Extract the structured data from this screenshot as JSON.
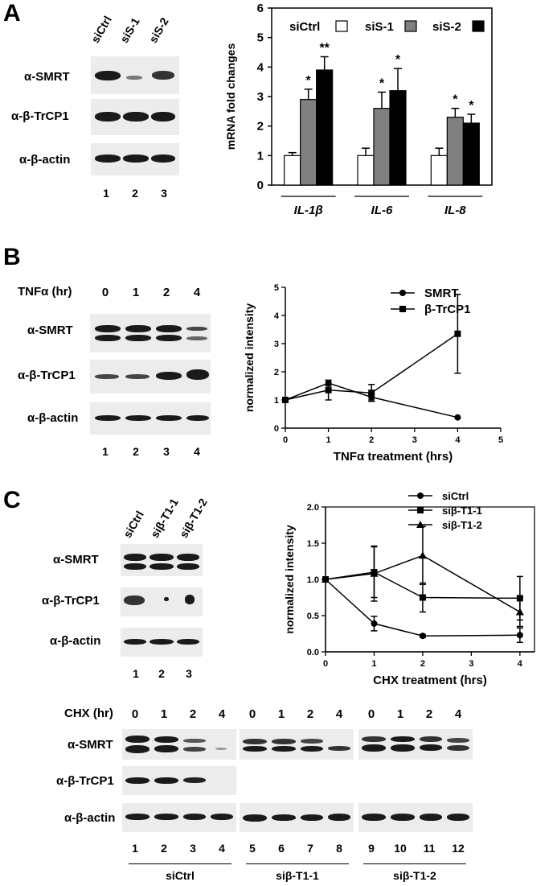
{
  "panels": {
    "A": {
      "letter": "A",
      "lanes_header": [
        "siCtrl",
        "siS-1",
        "siS-2"
      ],
      "blots": [
        "α-SMRT",
        "α-β-TrCP1",
        "α-β-actin"
      ],
      "lane_numbers": [
        "1",
        "2",
        "3"
      ]
    },
    "B": {
      "letter": "B",
      "tnf_header": "TNFα (hr)",
      "times": [
        "0",
        "1",
        "2",
        "4"
      ],
      "blots": [
        "α-SMRT",
        "α-β-TrCP1",
        "α-β-actin"
      ],
      "lane_numbers": [
        "1",
        "2",
        "3",
        "4"
      ]
    },
    "C": {
      "letter": "C",
      "lanes_header": [
        "siCtrl",
        "siβ-T1-1",
        "siβ-T1-2"
      ],
      "blots": [
        "α-SMRT",
        "α-β-TrCP1",
        "α-β-actin"
      ],
      "lane_numbers": [
        "1",
        "2",
        "3"
      ],
      "chx_header": "CHX (hr)",
      "chx_times": [
        "0",
        "1",
        "2",
        "4",
        "0",
        "1",
        "2",
        "4",
        "0",
        "1",
        "2",
        "4"
      ],
      "wide_blots": [
        "α-SMRT",
        "α-β-TrCP1",
        "α-β-actin"
      ],
      "wide_lane_numbers": [
        "1",
        "2",
        "3",
        "4",
        "5",
        "6",
        "7",
        "8",
        "9",
        "10",
        "11",
        "12"
      ],
      "groups": [
        "siCtrl",
        "siβ-T1-1",
        "siβ-T1-2"
      ]
    }
  },
  "chart_data": [
    {
      "id": "A",
      "type": "bar",
      "ylabel": "mRNA fold changes",
      "ylim": [
        0,
        6
      ],
      "yticks": [
        "0",
        "1",
        "2",
        "3",
        "4",
        "5",
        "6"
      ],
      "categories": [
        "IL-1β",
        "IL-6",
        "IL-8"
      ],
      "series": [
        {
          "name": "siCtrl",
          "color": "#ffffff",
          "values": [
            1.0,
            1.0,
            1.0
          ],
          "errors": [
            0.1,
            0.25,
            0.25
          ]
        },
        {
          "name": "siS-1",
          "color": "#808080",
          "values": [
            2.9,
            2.6,
            2.3
          ],
          "errors": [
            0.35,
            0.55,
            0.3
          ]
        },
        {
          "name": "siS-2",
          "color": "#000000",
          "values": [
            3.9,
            3.2,
            2.1
          ],
          "errors": [
            0.45,
            0.75,
            0.3
          ]
        }
      ],
      "annotations": [
        {
          "category": 0,
          "series": 1,
          "text": "*"
        },
        {
          "category": 0,
          "series": 2,
          "text": "**"
        },
        {
          "category": 1,
          "series": 1,
          "text": "*"
        },
        {
          "category": 1,
          "series": 2,
          "text": "*"
        },
        {
          "category": 2,
          "series": 1,
          "text": "*"
        },
        {
          "category": 2,
          "series": 2,
          "text": "*"
        }
      ],
      "legend": "top"
    },
    {
      "id": "B",
      "type": "line",
      "xlabel": "TNFα treatment (hrs)",
      "ylabel": "normalized intensity",
      "xlim": [
        0,
        5
      ],
      "ylim": [
        0,
        5
      ],
      "xticks": [
        "0",
        "1",
        "2",
        "3",
        "4",
        "5"
      ],
      "yticks": [
        "0",
        "1",
        "2",
        "3",
        "4",
        "5"
      ],
      "series": [
        {
          "name": "SMRT",
          "marker": "circle",
          "x": [
            0,
            1,
            2,
            4
          ],
          "y": [
            1.0,
            1.6,
            1.1,
            0.38
          ],
          "errors": [
            0,
            0.1,
            0.1,
            0
          ]
        },
        {
          "name": "β-TrCP1",
          "marker": "square",
          "x": [
            0,
            1,
            2,
            4
          ],
          "y": [
            1.0,
            1.35,
            1.25,
            3.35
          ],
          "errors": [
            0,
            0.35,
            0.3,
            1.4
          ]
        }
      ],
      "legend": "top-right"
    },
    {
      "id": "C",
      "type": "line",
      "xlabel": "CHX treatment (hrs)",
      "ylabel": "normalized intensity",
      "xlim": [
        0,
        4.3
      ],
      "ylim": [
        0,
        2.0
      ],
      "xticks": [
        "0",
        "1",
        "2",
        "3",
        "4"
      ],
      "yticks": [
        "0.0",
        "0.5",
        "1.0",
        "1.5",
        "2.0"
      ],
      "series": [
        {
          "name": "siCtrl",
          "marker": "circle",
          "x": [
            0,
            1,
            2,
            4
          ],
          "y": [
            1.0,
            0.39,
            0.22,
            0.23
          ],
          "errors": [
            0,
            0.1,
            0.02,
            0.1
          ]
        },
        {
          "name": "siβ-T1-1",
          "marker": "square",
          "x": [
            0,
            1,
            2,
            4
          ],
          "y": [
            1.0,
            1.1,
            0.75,
            0.74
          ],
          "errors": [
            0,
            0.35,
            0.2,
            0.3
          ]
        },
        {
          "name": "siβ-T1-2",
          "marker": "triangle",
          "x": [
            0,
            1,
            2,
            4
          ],
          "y": [
            1.0,
            1.08,
            1.33,
            0.55
          ],
          "errors": [
            0,
            0.38,
            0.4,
            0.2
          ]
        }
      ],
      "legend": "top-right"
    }
  ]
}
